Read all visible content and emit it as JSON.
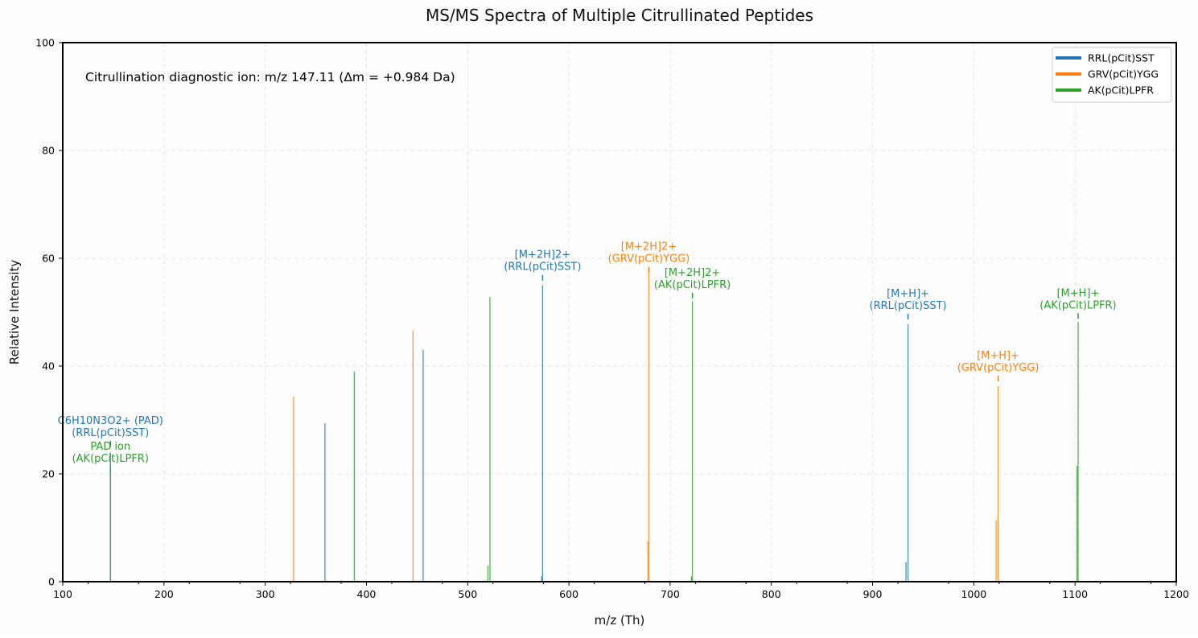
{
  "chart_data": {
    "type": "bar",
    "title": "MS/MS Spectra of Multiple Citrullinated Peptides",
    "xlabel": "m/z (Th)",
    "ylabel": "Relative Intensity",
    "xlim": [
      100,
      1200
    ],
    "ylim": [
      0,
      100
    ],
    "xticks": [
      100,
      200,
      300,
      400,
      500,
      600,
      700,
      800,
      900,
      1000,
      1100,
      1200
    ],
    "yticks": [
      0,
      20,
      40,
      60,
      80,
      100
    ],
    "grid": true,
    "legend_placement": "top-right",
    "text_annotation": "Citrullination diagnostic ion: m/z 147.11 (Δm = +0.984 Da)",
    "series": [
      {
        "name": "RRL(pCit)SST",
        "color": "#1f77b4",
        "peaks": [
          [
            147.1,
            24
          ],
          [
            359,
            29.4
          ],
          [
            456,
            43
          ],
          [
            573,
            1
          ],
          [
            574,
            55
          ],
          [
            933,
            3.6
          ],
          [
            935,
            47.8
          ]
        ]
      },
      {
        "name": "GRV(pCit)YGG",
        "color": "#ff7f0e",
        "peaks": [
          [
            328,
            34.3
          ],
          [
            446,
            46.6
          ],
          [
            678,
            7.5
          ],
          [
            679,
            58.2
          ],
          [
            1022,
            11.4
          ],
          [
            1024,
            36.3
          ]
        ]
      },
      {
        "name": "AK(pCit)LPFR",
        "color": "#2ca02c",
        "peaks": [
          [
            147.1,
            22
          ],
          [
            388,
            39
          ],
          [
            520,
            3
          ],
          [
            522,
            52.8
          ],
          [
            721,
            1
          ],
          [
            722,
            52
          ],
          [
            1102,
            21.5
          ],
          [
            1103,
            48.2
          ]
        ]
      }
    ],
    "annotations": [
      {
        "series": 0,
        "mz": 147.1,
        "y": 27,
        "lines": [
          "C6H10N3O2+ (PAD)",
          "(RRL(pCit)SST)"
        ]
      },
      {
        "series": 2,
        "mz": 147.1,
        "y": 24.2,
        "lines": [
          "PAD ion",
          "(AK(pCit)LPFR)"
        ]
      },
      {
        "series": 0,
        "mz": 574,
        "y": 57.8,
        "lines": [
          "[M+2H]2+",
          "(RRL(pCit)SST)"
        ]
      },
      {
        "series": 1,
        "mz": 679,
        "y": 59.3,
        "lines": [
          "[M+2H]2+",
          "(GRV(pCit)YGG)"
        ]
      },
      {
        "series": 2,
        "mz": 722,
        "y": 54.5,
        "lines": [
          "[M+2H]2+",
          "(AK(pCit)LPFR)"
        ]
      },
      {
        "series": 0,
        "mz": 935,
        "y": 50.6,
        "lines": [
          "[M+H]+",
          "(RRL(pCit)SST)"
        ]
      },
      {
        "series": 1,
        "mz": 1024,
        "y": 39.1,
        "lines": [
          "[M+H]+",
          "(GRV(pCit)YGG)"
        ]
      },
      {
        "series": 2,
        "mz": 1103,
        "y": 50.7,
        "lines": [
          "[M+H]+",
          "(AK(pCit)LPFR)"
        ]
      }
    ]
  }
}
